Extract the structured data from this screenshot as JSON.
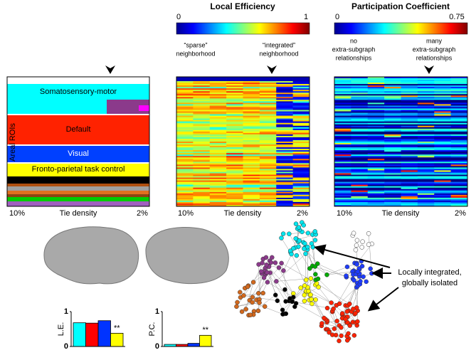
{
  "panel_a": {
    "bands": [
      "Somatosensory-motor",
      "Default",
      "Visual",
      "Fronto-parietal task control"
    ],
    "y_label": "Areal ROIs",
    "x_left": "10%",
    "x_label": "Tie density",
    "x_right": "2%"
  },
  "panel_le": {
    "title": "Local Efficiency",
    "cbar_min": "0",
    "cbar_max": "1",
    "left_note": [
      "“sparse”",
      "neighborhood"
    ],
    "right_note": [
      "“integrated”",
      "neighborhood"
    ],
    "x_left": "10%",
    "x_label": "Tie density",
    "x_right": "2%"
  },
  "panel_pc": {
    "title": "Participation Coefficient",
    "cbar_min": "0",
    "cbar_max": "0.75",
    "left_note": [
      "no",
      "extra-subgraph",
      "relationships"
    ],
    "right_note": [
      "many",
      "extra-subgraph",
      "relationships"
    ],
    "x_left": "10%",
    "x_label": "Tie density",
    "x_right": "2%"
  },
  "network_note": [
    "Locally integrated,",
    "globally isolated"
  ],
  "chart_data": [
    {
      "type": "bar",
      "ylabel": "L.E.",
      "categories": [
        null,
        null,
        null,
        null
      ],
      "values": [
        0.68,
        0.67,
        0.74,
        0.38
      ],
      "colors": [
        "#00ffff",
        "#ff0000",
        "#0033ff",
        "#ffff00"
      ],
      "ylim": [
        0,
        1
      ],
      "yticks": [
        0,
        1
      ],
      "annotation": "**"
    },
    {
      "type": "bar",
      "ylabel": "P.C.",
      "categories": [
        null,
        null,
        null,
        null
      ],
      "values": [
        0.06,
        0.06,
        0.09,
        0.32
      ],
      "colors": [
        "#00ffff",
        "#ff0000",
        "#0033ff",
        "#ffff00"
      ],
      "ylim": [
        0,
        1
      ],
      "yticks": [
        0,
        1
      ],
      "annotation": "**"
    }
  ]
}
